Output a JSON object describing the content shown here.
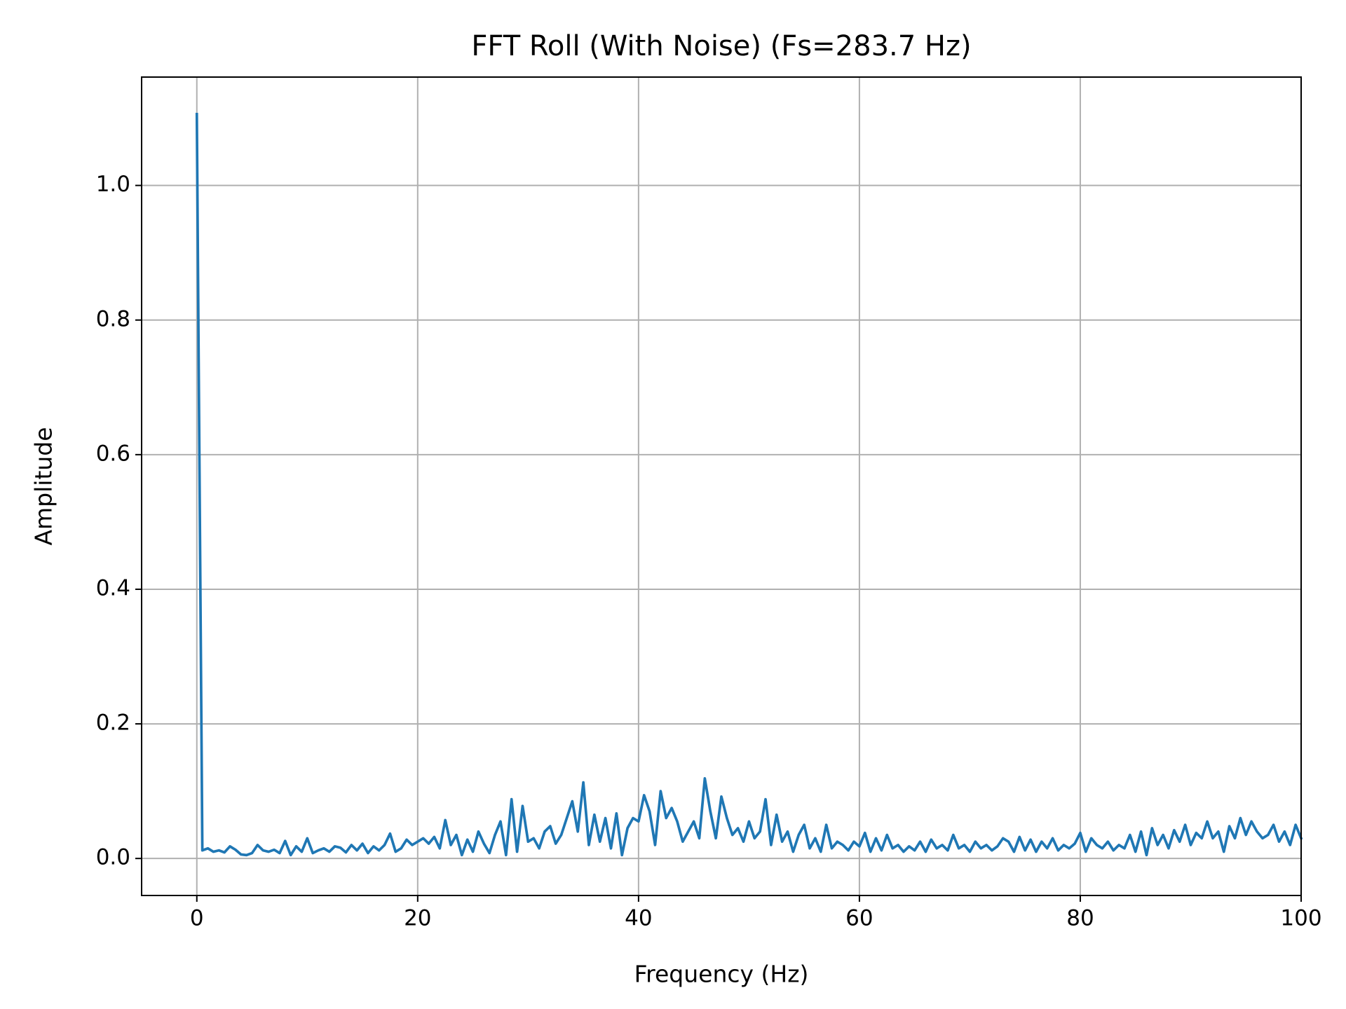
{
  "chart_data": {
    "type": "line",
    "title": "FFT Roll (With Noise) (Fs=283.7 Hz)",
    "x_label": "Frequency (Hz)",
    "y_label": "Amplitude",
    "color": "#1f77b4",
    "grid": true,
    "xlim": [
      -5,
      100
    ],
    "ylim": [
      -0.055,
      1.161
    ],
    "xticks": [
      0,
      20,
      40,
      60,
      80,
      100
    ],
    "yticks": [
      {
        "value": 0,
        "label": "0.0"
      },
      {
        "value": 0.2,
        "label": "0.2"
      },
      {
        "value": 0.4,
        "label": "0.4"
      },
      {
        "value": 0.6,
        "label": "0.6"
      },
      {
        "value": 0.8,
        "label": "0.8"
      },
      {
        "value": 1,
        "label": "1.0"
      }
    ],
    "x": [
      0,
      0.5,
      1,
      1.5,
      2,
      2.5,
      3,
      3.5,
      4,
      4.5,
      5,
      5.5,
      6,
      6.5,
      7,
      7.5,
      8,
      8.5,
      9,
      9.5,
      10,
      10.5,
      11,
      11.5,
      12,
      12.5,
      13,
      13.5,
      14,
      14.5,
      15,
      15.5,
      16,
      16.5,
      17,
      17.5,
      18,
      18.5,
      19,
      19.5,
      20,
      20.5,
      21,
      21.5,
      22,
      22.5,
      23,
      23.5,
      24,
      24.5,
      25,
      25.5,
      26,
      26.5,
      27,
      27.5,
      28,
      28.5,
      29,
      29.5,
      30,
      30.5,
      31,
      31.5,
      32,
      32.5,
      33,
      33.5,
      34,
      34.5,
      35,
      35.5,
      36,
      36.5,
      37,
      37.5,
      38,
      38.5,
      39,
      39.5,
      40,
      40.5,
      41,
      41.5,
      42,
      42.5,
      43,
      43.5,
      44,
      44.5,
      45,
      45.5,
      46,
      46.5,
      47,
      47.5,
      48,
      48.5,
      49,
      49.5,
      50,
      50.5,
      51,
      51.5,
      52,
      52.5,
      53,
      53.5,
      54,
      54.5,
      55,
      55.5,
      56,
      56.5,
      57,
      57.5,
      58,
      58.5,
      59,
      59.5,
      60,
      60.5,
      61,
      61.5,
      62,
      62.5,
      63,
      63.5,
      64,
      64.5,
      65,
      65.5,
      66,
      66.5,
      67,
      67.5,
      68,
      68.5,
      69,
      69.5,
      70,
      70.5,
      71,
      71.5,
      72,
      72.5,
      73,
      73.5,
      74,
      74.5,
      75,
      75.5,
      76,
      76.5,
      77,
      77.5,
      78,
      78.5,
      79,
      79.5,
      80,
      80.5,
      81,
      81.5,
      82,
      82.5,
      83,
      83.5,
      84,
      84.5,
      85,
      85.5,
      86,
      86.5,
      87,
      87.5,
      88,
      88.5,
      89,
      89.5,
      90,
      90.5,
      91,
      91.5,
      92,
      92.5,
      93,
      93.5,
      94,
      94.5,
      95,
      95.5,
      96,
      96.5,
      97,
      97.5,
      98,
      98.5,
      99,
      99.5,
      100
    ],
    "values": [
      1.106,
      0.012,
      0.015,
      0.01,
      0.012,
      0.009,
      0.018,
      0.013,
      0.006,
      0.005,
      0.008,
      0.02,
      0.012,
      0.01,
      0.013,
      0.008,
      0.026,
      0.005,
      0.018,
      0.01,
      0.03,
      0.008,
      0.012,
      0.015,
      0.01,
      0.018,
      0.016,
      0.009,
      0.02,
      0.012,
      0.022,
      0.008,
      0.018,
      0.012,
      0.02,
      0.037,
      0.01,
      0.015,
      0.028,
      0.02,
      0.025,
      0.03,
      0.022,
      0.032,
      0.015,
      0.057,
      0.02,
      0.035,
      0.005,
      0.028,
      0.01,
      0.04,
      0.022,
      0.008,
      0.035,
      0.055,
      0.005,
      0.088,
      0.01,
      0.078,
      0.025,
      0.03,
      0.015,
      0.04,
      0.048,
      0.022,
      0.035,
      0.06,
      0.085,
      0.04,
      0.113,
      0.02,
      0.065,
      0.025,
      0.06,
      0.015,
      0.067,
      0.005,
      0.045,
      0.06,
      0.055,
      0.094,
      0.07,
      0.02,
      0.1,
      0.06,
      0.075,
      0.055,
      0.025,
      0.04,
      0.055,
      0.03,
      0.119,
      0.07,
      0.03,
      0.092,
      0.06,
      0.035,
      0.045,
      0.025,
      0.055,
      0.03,
      0.04,
      0.088,
      0.02,
      0.065,
      0.025,
      0.04,
      0.01,
      0.035,
      0.05,
      0.015,
      0.03,
      0.01,
      0.05,
      0.015,
      0.025,
      0.02,
      0.012,
      0.025,
      0.018,
      0.038,
      0.01,
      0.03,
      0.012,
      0.035,
      0.015,
      0.02,
      0.01,
      0.018,
      0.012,
      0.025,
      0.01,
      0.028,
      0.015,
      0.02,
      0.012,
      0.035,
      0.015,
      0.02,
      0.01,
      0.025,
      0.015,
      0.02,
      0.012,
      0.018,
      0.03,
      0.025,
      0.01,
      0.032,
      0.012,
      0.028,
      0.01,
      0.025,
      0.015,
      0.03,
      0.012,
      0.02,
      0.015,
      0.022,
      0.038,
      0.01,
      0.03,
      0.02,
      0.015,
      0.025,
      0.012,
      0.02,
      0.015,
      0.035,
      0.01,
      0.04,
      0.005,
      0.045,
      0.02,
      0.035,
      0.015,
      0.042,
      0.025,
      0.05,
      0.02,
      0.038,
      0.03,
      0.055,
      0.03,
      0.04,
      0.01,
      0.048,
      0.03,
      0.06,
      0.035,
      0.055,
      0.04,
      0.03,
      0.035,
      0.05,
      0.025,
      0.04,
      0.02,
      0.05,
      0.03
    ]
  }
}
